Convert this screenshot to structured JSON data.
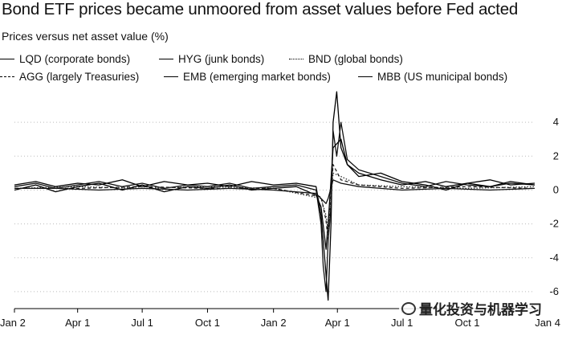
{
  "title": "Bond ETF prices became unmoored from asset values before Fed acted",
  "subtitle": "Prices versus net asset value (%)",
  "legend": [
    {
      "label": "LQD (corporate bonds)",
      "style": "solid"
    },
    {
      "label": "HYG (junk bonds)",
      "style": "solid"
    },
    {
      "label": "BND (global bonds)",
      "style": "dot"
    },
    {
      "label": "AGG (largely Treasuries)",
      "style": "dash"
    },
    {
      "label": "EMB (emerging market bonds)",
      "style": "solid"
    },
    {
      "label": "MBB (US municipal bonds)",
      "style": "solid"
    }
  ],
  "watermark": "量化投资与机器学习",
  "chart_data": {
    "type": "line",
    "title": "Bond ETF prices became unmoored from asset values before Fed acted",
    "ylabel": "Prices versus net asset value (%)",
    "xlim": [
      "2019-01-02",
      "2021-01-04"
    ],
    "ylim": [
      -7,
      6
    ],
    "y_ticks": [
      -6,
      -4,
      -2,
      0,
      2,
      4
    ],
    "y_axis_side": "right",
    "x_ticks": [
      {
        "date": "2019-01-02",
        "label": "Jan 2"
      },
      {
        "date": "2019-04-01",
        "label": "Apr 1"
      },
      {
        "date": "2019-07-01",
        "label": "Jul 1"
      },
      {
        "date": "2019-10-01",
        "label": "Oct 1"
      },
      {
        "date": "2020-01-02",
        "label": "Jan 2"
      },
      {
        "date": "2020-04-01",
        "label": "Apr 1"
      },
      {
        "date": "2020-07-01",
        "label": "Jul 1"
      },
      {
        "date": "2020-10-01",
        "label": "Oct 1"
      },
      {
        "date": "2021-01-04",
        "label": "Jan 4"
      }
    ],
    "grid": "horizontal-dotted",
    "legend_position": "top",
    "series": [
      {
        "name": "LQD (corporate bonds)",
        "color": "#000000",
        "dash": "solid",
        "x": [
          "2019-01-02",
          "2019-02-01",
          "2019-03-01",
          "2019-04-01",
          "2019-05-01",
          "2019-06-03",
          "2019-07-01",
          "2019-08-01",
          "2019-09-03",
          "2019-10-01",
          "2019-11-01",
          "2019-12-02",
          "2020-01-02",
          "2020-02-03",
          "2020-03-02",
          "2020-03-09",
          "2020-03-12",
          "2020-03-16",
          "2020-03-19",
          "2020-03-23",
          "2020-03-26",
          "2020-03-31",
          "2020-04-06",
          "2020-04-15",
          "2020-05-01",
          "2020-06-01",
          "2020-07-01",
          "2020-08-03",
          "2020-09-01",
          "2020-10-01",
          "2020-11-02",
          "2020-12-01",
          "2021-01-04"
        ],
        "y": [
          0.3,
          0.5,
          0.2,
          0.4,
          0.3,
          0.6,
          0.2,
          0.5,
          0.3,
          0.4,
          0.2,
          0.5,
          0.3,
          0.4,
          0.2,
          -1.5,
          -3.0,
          -5.0,
          -6.5,
          -2.0,
          4.0,
          5.8,
          2.5,
          1.5,
          1.0,
          0.6,
          0.3,
          0.5,
          0.2,
          0.4,
          0.6,
          0.3,
          0.4
        ]
      },
      {
        "name": "HYG (junk bonds)",
        "color": "#111111",
        "dash": "solid",
        "x": [
          "2019-01-02",
          "2019-02-01",
          "2019-03-01",
          "2019-04-01",
          "2019-05-01",
          "2019-06-03",
          "2019-07-01",
          "2019-08-01",
          "2019-09-03",
          "2019-10-01",
          "2019-11-01",
          "2019-12-02",
          "2020-01-02",
          "2020-02-03",
          "2020-03-02",
          "2020-03-09",
          "2020-03-12",
          "2020-03-16",
          "2020-03-19",
          "2020-03-23",
          "2020-03-26",
          "2020-03-31",
          "2020-04-06",
          "2020-04-15",
          "2020-05-01",
          "2020-06-01",
          "2020-07-01",
          "2020-08-03",
          "2020-09-01",
          "2020-10-01",
          "2020-11-02",
          "2020-12-01",
          "2021-01-04"
        ],
        "y": [
          0.2,
          0.4,
          0.1,
          0.3,
          0.5,
          0.2,
          0.4,
          0.1,
          0.3,
          0.2,
          0.4,
          0.1,
          0.2,
          0.3,
          0.0,
          -2.0,
          -4.5,
          -6.0,
          -3.0,
          -1.0,
          3.5,
          2.0,
          4.0,
          1.8,
          1.2,
          0.8,
          0.4,
          0.2,
          0.5,
          0.3,
          0.2,
          0.4,
          0.3
        ]
      },
      {
        "name": "BND (global bonds)",
        "color": "#333333",
        "dash": "dot",
        "x": [
          "2019-01-02",
          "2019-04-01",
          "2019-07-01",
          "2019-10-01",
          "2020-01-02",
          "2020-03-09",
          "2020-03-16",
          "2020-03-19",
          "2020-03-26",
          "2020-04-06",
          "2020-05-01",
          "2020-07-01",
          "2020-10-01",
          "2021-01-04"
        ],
        "y": [
          0.1,
          0.2,
          0.1,
          0.2,
          0.1,
          -0.5,
          -1.5,
          -2.5,
          1.0,
          0.8,
          0.3,
          0.2,
          0.1,
          0.2
        ]
      },
      {
        "name": "AGG (largely Treasuries)",
        "color": "#222222",
        "dash": "dash",
        "x": [
          "2019-01-02",
          "2019-04-01",
          "2019-07-01",
          "2019-10-01",
          "2020-01-02",
          "2020-03-09",
          "2020-03-16",
          "2020-03-19",
          "2020-03-26",
          "2020-04-06",
          "2020-05-01",
          "2020-07-01",
          "2020-10-01",
          "2021-01-04"
        ],
        "y": [
          0.1,
          0.1,
          0.2,
          0.1,
          0.1,
          -0.4,
          -1.8,
          -3.0,
          1.5,
          0.6,
          0.3,
          0.1,
          0.2,
          0.1
        ]
      },
      {
        "name": "EMB (emerging market bonds)",
        "color": "#000000",
        "dash": "solid",
        "x": [
          "2019-01-02",
          "2019-02-01",
          "2019-03-01",
          "2019-04-01",
          "2019-05-01",
          "2019-06-03",
          "2019-07-01",
          "2019-08-01",
          "2019-09-03",
          "2019-10-01",
          "2019-11-01",
          "2019-12-02",
          "2020-01-02",
          "2020-02-03",
          "2020-03-02",
          "2020-03-09",
          "2020-03-16",
          "2020-03-19",
          "2020-03-26",
          "2020-04-06",
          "2020-04-15",
          "2020-05-01",
          "2020-06-01",
          "2020-07-01",
          "2020-08-03",
          "2020-09-01",
          "2020-10-01",
          "2020-11-02",
          "2020-12-01",
          "2021-01-04"
        ],
        "y": [
          0.0,
          0.3,
          -0.1,
          0.2,
          0.4,
          0.0,
          0.3,
          -0.1,
          0.2,
          0.1,
          0.3,
          0.0,
          0.1,
          0.2,
          -0.3,
          -1.0,
          -3.5,
          -2.0,
          2.5,
          3.0,
          1.5,
          0.8,
          1.0,
          0.5,
          0.3,
          0.0,
          0.4,
          0.2,
          0.5,
          0.3
        ]
      },
      {
        "name": "MBB (US municipal bonds)",
        "color": "#111111",
        "dash": "solid",
        "x": [
          "2019-01-02",
          "2019-03-01",
          "2019-05-01",
          "2019-07-01",
          "2019-09-03",
          "2019-11-01",
          "2020-01-02",
          "2020-03-02",
          "2020-03-16",
          "2020-03-19",
          "2020-03-26",
          "2020-04-06",
          "2020-05-01",
          "2020-06-01",
          "2020-07-01",
          "2020-09-01",
          "2020-11-02",
          "2021-01-04"
        ],
        "y": [
          0.1,
          0.1,
          0.0,
          0.1,
          0.0,
          0.1,
          0.0,
          -0.2,
          -0.8,
          -0.5,
          0.6,
          0.4,
          0.2,
          0.1,
          0.0,
          0.1,
          0.0,
          0.1
        ]
      }
    ]
  }
}
